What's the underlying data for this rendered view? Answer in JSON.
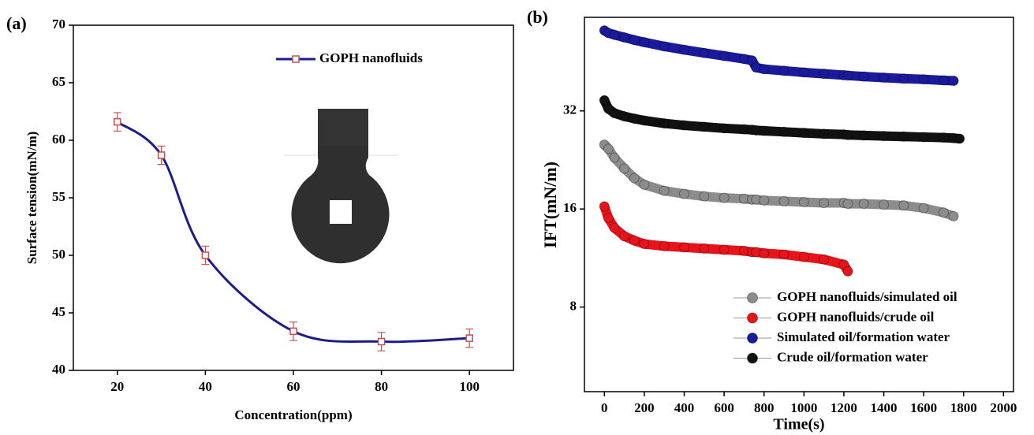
{
  "chart_data": [
    {
      "type": "scatter",
      "panel_label": "(a)",
      "x_label": "Concentration(ppm)",
      "y_label": "Surface tension(mN/m)",
      "x": [
        20,
        30,
        40,
        60,
        80,
        100
      ],
      "series": [
        {
          "name": "GOPH nanofluids",
          "color": "#c0504d",
          "line_color": "#1c1c8a",
          "values": [
            61.6,
            58.7,
            50.0,
            43.4,
            42.5,
            42.8
          ],
          "errors": [
            0.8,
            0.8,
            0.8,
            0.8,
            0.8,
            0.8
          ]
        }
      ],
      "xlim": [
        10,
        110
      ],
      "xticks": [
        20,
        40,
        60,
        80,
        100
      ],
      "ylim": [
        40,
        70
      ],
      "yticks": [
        40,
        45,
        50,
        55,
        60,
        65,
        70
      ]
    },
    {
      "type": "line",
      "panel_label": "(b)",
      "x_label": "Time(s)",
      "y_label": "IFT(mN/m)",
      "log_y": true,
      "x": [
        0,
        20,
        50,
        100,
        150,
        200,
        300,
        400,
        500,
        600,
        700,
        740,
        760,
        800,
        900,
        1000,
        1100,
        1200,
        1220,
        1300,
        1400,
        1500,
        1600,
        1700,
        1750,
        1780
      ],
      "series": [
        {
          "name": "GOPH nanofluids/simulated oil",
          "color": "#8c8c8c",
          "values": [
            25.2,
            24.5,
            23.0,
            21.3,
            19.9,
            19.0,
            18.2,
            17.8,
            17.5,
            17.3,
            17.2,
            17.1,
            17.1,
            17.0,
            16.9,
            16.8,
            16.7,
            16.7,
            16.6,
            16.6,
            16.5,
            16.4,
            16.1,
            15.6,
            15.2,
            null
          ]
        },
        {
          "name": "GOPH nanofluids/crude oil",
          "color": "#e8141c",
          "values": [
            16.3,
            15.0,
            14.0,
            13.2,
            12.8,
            12.5,
            12.3,
            12.2,
            12.1,
            12.0,
            11.9,
            11.8,
            11.8,
            11.7,
            11.6,
            11.4,
            11.2,
            10.8,
            10.3,
            null,
            null,
            null,
            null,
            null,
            null,
            null
          ]
        },
        {
          "name": "Simulated oil/formation water",
          "color": "#1a1a9c",
          "values": [
            56.5,
            55.5,
            54.8,
            53.8,
            52.8,
            52.0,
            50.5,
            49.3,
            48.2,
            47.2,
            46.2,
            45.7,
            43.5,
            43.0,
            42.5,
            42.0,
            41.6,
            41.2,
            41.1,
            40.8,
            40.5,
            40.2,
            40.0,
            39.7,
            39.6,
            null
          ]
        },
        {
          "name": "Crude oil/formation water",
          "color": "#111111",
          "values": [
            34.5,
            32.5,
            31.5,
            30.8,
            30.3,
            29.9,
            29.3,
            28.9,
            28.6,
            28.3,
            28.1,
            28.0,
            27.9,
            27.8,
            27.6,
            27.4,
            27.2,
            27.1,
            27.0,
            26.9,
            26.8,
            26.7,
            26.6,
            26.5,
            26.4,
            26.3
          ]
        }
      ],
      "xlim": [
        -100,
        2050
      ],
      "xticks": [
        0,
        200,
        400,
        600,
        800,
        1000,
        1200,
        1400,
        1600,
        1800,
        2000
      ],
      "ylim": [
        4.4,
        62
      ],
      "yticks": [
        8,
        16,
        32
      ]
    }
  ]
}
